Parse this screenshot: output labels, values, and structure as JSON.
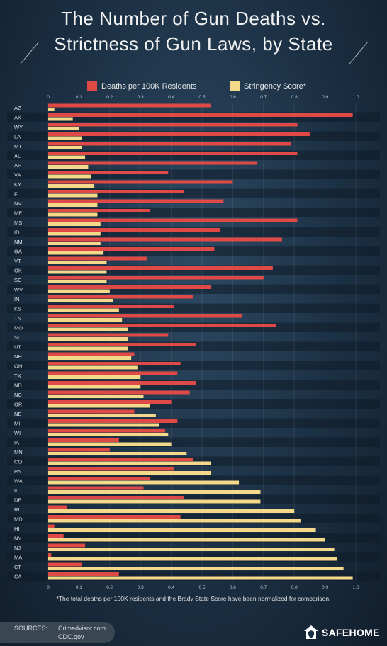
{
  "title": {
    "line1": "The Number of Gun Deaths vs.",
    "line2": "Strictness of Gun Laws, by State"
  },
  "colors": {
    "deaths": "#e04a46",
    "stringency": "#f4d98a",
    "row_alt": "#0f1b28",
    "axis_text": "#b8c4d0",
    "state_text": "#d8dee4"
  },
  "chart_data": {
    "type": "bar",
    "orientation": "horizontal",
    "xlim": [
      0,
      1.0
    ],
    "x_ticks": [
      "0",
      "0.1",
      "0.2",
      "0.3",
      "0.4",
      "0.5",
      "0.6",
      "0.7",
      "0.8",
      "0.9",
      "1.0"
    ],
    "categories": [
      "AZ",
      "AK",
      "WY",
      "LA",
      "MT",
      "AL",
      "AR",
      "VA",
      "KY",
      "FL",
      "NV",
      "ME",
      "MS",
      "ID",
      "NM",
      "GA",
      "VT",
      "OK",
      "SC",
      "WV",
      "IN",
      "KS",
      "TN",
      "MO",
      "SD",
      "UT",
      "NH",
      "OH",
      "TX",
      "ND",
      "NC",
      "OR",
      "NE",
      "MI",
      "WI",
      "IA",
      "MN",
      "CO",
      "PA",
      "WA",
      "IL",
      "DE",
      "RI",
      "MD",
      "HI",
      "NY",
      "NJ",
      "MA",
      "CT",
      "CA"
    ],
    "series": [
      {
        "name": "Deaths per 100K Residents",
        "values": [
          0.53,
          0.99,
          0.81,
          0.85,
          0.79,
          0.81,
          0.68,
          0.39,
          0.6,
          0.44,
          0.57,
          0.33,
          0.81,
          0.56,
          0.76,
          0.54,
          0.32,
          0.73,
          0.7,
          0.53,
          0.47,
          0.41,
          0.63,
          0.74,
          0.39,
          0.48,
          0.28,
          0.43,
          0.42,
          0.48,
          0.46,
          0.4,
          0.28,
          0.42,
          0.38,
          0.23,
          0.2,
          0.47,
          0.41,
          0.33,
          0.31,
          0.44,
          0.06,
          0.43,
          0.02,
          0.05,
          0.12,
          0.01,
          0.11,
          0.23
        ]
      },
      {
        "name": "Stringency Score*",
        "values": [
          0.02,
          0.08,
          0.1,
          0.11,
          0.11,
          0.12,
          0.13,
          0.14,
          0.15,
          0.16,
          0.16,
          0.16,
          0.17,
          0.17,
          0.17,
          0.18,
          0.19,
          0.19,
          0.19,
          0.2,
          0.21,
          0.23,
          0.24,
          0.26,
          0.26,
          0.26,
          0.27,
          0.29,
          0.3,
          0.3,
          0.31,
          0.33,
          0.35,
          0.36,
          0.39,
          0.4,
          0.45,
          0.53,
          0.53,
          0.62,
          0.69,
          0.69,
          0.8,
          0.82,
          0.87,
          0.9,
          0.93,
          0.94,
          0.96,
          0.99
        ]
      }
    ]
  },
  "footnote": "*The total deaths per 100K residents and the Brady State Score have been normalized for comparison.",
  "sources": {
    "label": "SOURCES:",
    "line1": "Crimadvisor.com",
    "line2": "CDC.gov"
  },
  "brand": {
    "name": "SAFEHOME",
    "icon": "house-shield-icon"
  }
}
